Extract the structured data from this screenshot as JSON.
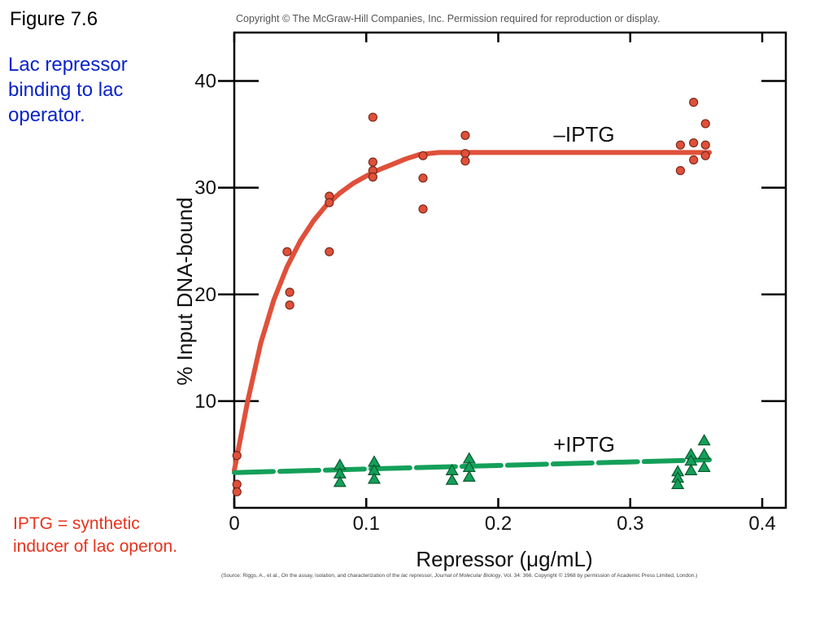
{
  "slide": {
    "figure_label": "Figure 7.6",
    "caption": "Lac repressor binding to lac operator.",
    "note": "IPTG = synthetic inducer of lac operon.",
    "copyright": "Copyright © The McGraw-Hill Companies, Inc. Permission required for reproduction or display.",
    "source_prefix": "(Source: Riggs, A., et al., On the assay, isolation, and characterization of the ",
    "source_lac": "lac",
    "source_middle": " repressor, ",
    "source_journal": "Journal of Molecular Biology",
    "source_suffix": ", Vol. 34: 366. Copyright © 1968 by permission of Academic Press Limited, London.)"
  },
  "chart_data": {
    "type": "scatter",
    "xlabel": "Repressor (μg/mL)",
    "ylabel": "% Input DNA-bound",
    "xlim": [
      0,
      0.4
    ],
    "ylim": [
      0,
      45
    ],
    "xticks": [
      0,
      0.1,
      0.2,
      0.3,
      0.4
    ],
    "xtick_labels": [
      "0",
      "0.1",
      "0.2",
      "0.3",
      "0.4"
    ],
    "yticks": [
      10,
      20,
      30,
      40
    ],
    "ytick_labels": [
      "10",
      "20",
      "30",
      "40"
    ],
    "grid": false,
    "series": [
      {
        "name": "–IPTG",
        "color": "#e0503a",
        "marker": "circle",
        "points": [
          [
            0.002,
            4.9
          ],
          [
            0.002,
            2.2
          ],
          [
            0.002,
            1.5
          ],
          [
            0.04,
            24.0
          ],
          [
            0.042,
            20.2
          ],
          [
            0.042,
            19.0
          ],
          [
            0.072,
            29.2
          ],
          [
            0.072,
            28.6
          ],
          [
            0.072,
            24.0
          ],
          [
            0.105,
            36.6
          ],
          [
            0.105,
            32.4
          ],
          [
            0.105,
            31.6
          ],
          [
            0.105,
            31.0
          ],
          [
            0.143,
            33.0
          ],
          [
            0.143,
            30.9
          ],
          [
            0.143,
            28.0
          ],
          [
            0.175,
            34.9
          ],
          [
            0.175,
            33.2
          ],
          [
            0.175,
            32.5
          ],
          [
            0.338,
            34.0
          ],
          [
            0.338,
            31.6
          ],
          [
            0.348,
            38.0
          ],
          [
            0.348,
            34.2
          ],
          [
            0.348,
            32.6
          ],
          [
            0.357,
            36.0
          ],
          [
            0.357,
            34.0
          ],
          [
            0.357,
            33.0
          ]
        ],
        "curve": [
          [
            0.0,
            3.5
          ],
          [
            0.01,
            9.9
          ],
          [
            0.02,
            15.4
          ],
          [
            0.03,
            19.5
          ],
          [
            0.04,
            22.6
          ],
          [
            0.05,
            25.0
          ],
          [
            0.06,
            26.9
          ],
          [
            0.07,
            28.4
          ],
          [
            0.08,
            29.5
          ],
          [
            0.09,
            30.4
          ],
          [
            0.1,
            31.1
          ],
          [
            0.11,
            31.7
          ],
          [
            0.12,
            32.2
          ],
          [
            0.13,
            32.7
          ],
          [
            0.14,
            33.1
          ],
          [
            0.155,
            33.3
          ],
          [
            0.36,
            33.3
          ]
        ]
      },
      {
        "name": "+IPTG",
        "color": "#14a05a",
        "marker": "triangle",
        "points": [
          [
            0.08,
            4.0
          ],
          [
            0.08,
            3.2
          ],
          [
            0.08,
            2.4
          ],
          [
            0.106,
            4.3
          ],
          [
            0.106,
            3.5
          ],
          [
            0.106,
            2.7
          ],
          [
            0.165,
            3.5
          ],
          [
            0.165,
            2.6
          ],
          [
            0.178,
            4.6
          ],
          [
            0.178,
            3.8
          ],
          [
            0.178,
            2.9
          ],
          [
            0.336,
            3.4
          ],
          [
            0.336,
            2.8
          ],
          [
            0.336,
            2.2
          ],
          [
            0.346,
            5.0
          ],
          [
            0.346,
            4.4
          ],
          [
            0.346,
            3.5
          ],
          [
            0.356,
            6.3
          ],
          [
            0.356,
            5.0
          ],
          [
            0.356,
            3.8
          ]
        ],
        "curve": [
          [
            0.0,
            3.3
          ],
          [
            0.36,
            4.5
          ]
        ]
      }
    ]
  }
}
